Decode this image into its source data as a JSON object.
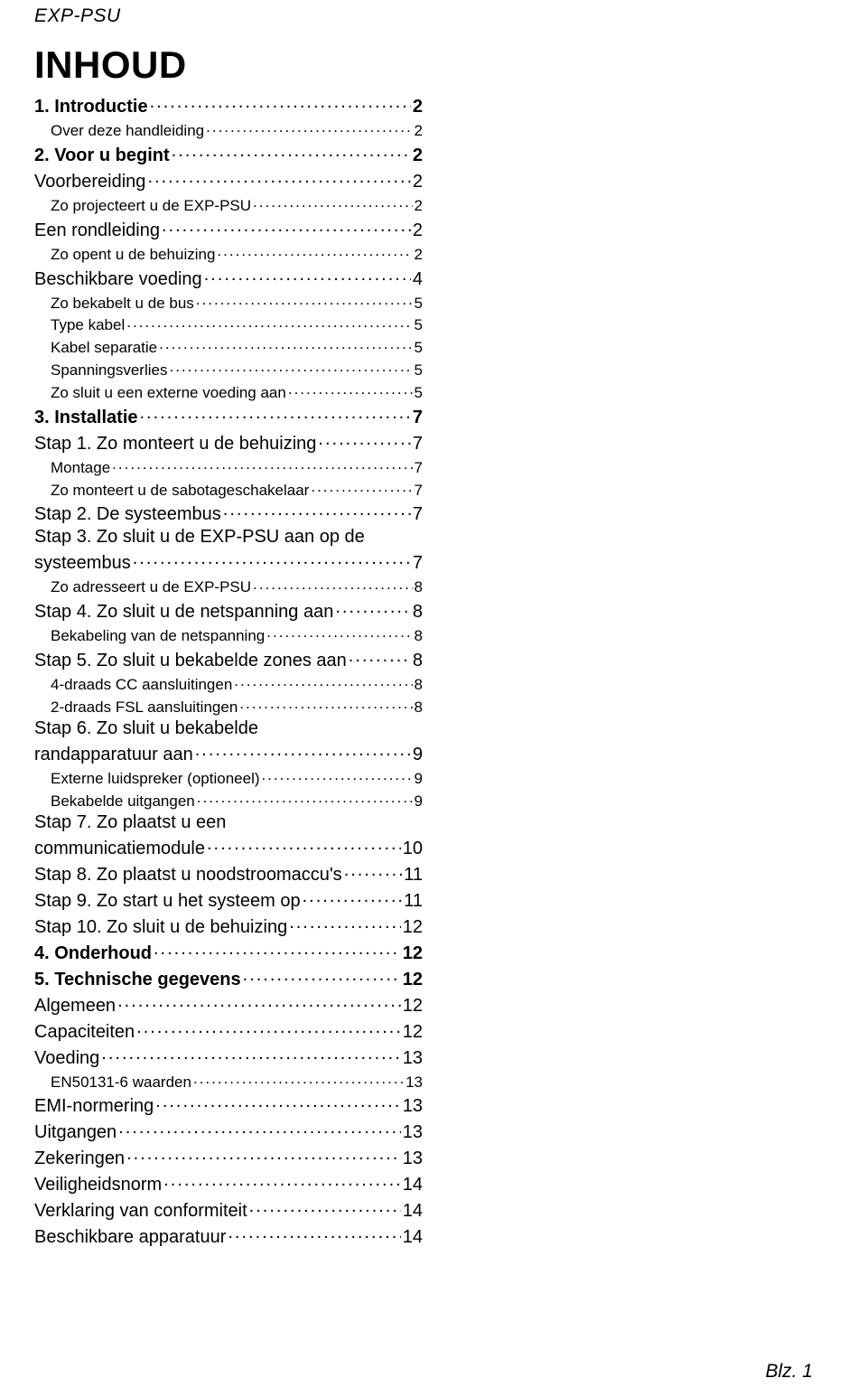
{
  "header": "EXP-PSU",
  "title": "INHOUD",
  "footer": "Blz. 1",
  "toc": [
    {
      "level": 1,
      "label": "1. Introductie",
      "page": "2"
    },
    {
      "level": 3,
      "label": "Over deze handleiding",
      "page": "2"
    },
    {
      "level": 1,
      "label": "2. Voor u begint",
      "page": "2"
    },
    {
      "level": 2,
      "label": "Voorbereiding",
      "page": "2"
    },
    {
      "level": 3,
      "label": "Zo projecteert u de EXP-PSU",
      "page": "2"
    },
    {
      "level": 2,
      "label": "Een rondleiding",
      "page": "2"
    },
    {
      "level": 3,
      "label": "Zo opent u de behuizing",
      "page": "2"
    },
    {
      "level": 2,
      "label": "Beschikbare voeding",
      "page": "4"
    },
    {
      "level": 3,
      "label": "Zo bekabelt u de bus",
      "page": "5"
    },
    {
      "level": 3,
      "label": "Type kabel",
      "page": "5"
    },
    {
      "level": 3,
      "label": "Kabel separatie",
      "page": "5"
    },
    {
      "level": 3,
      "label": "Spanningsverlies",
      "page": "5"
    },
    {
      "level": 3,
      "label": "Zo sluit u een externe voeding aan",
      "page": "5"
    },
    {
      "level": 1,
      "label": "3. Installatie",
      "page": "7"
    },
    {
      "level": 2,
      "label": "Stap 1. Zo monteert u de behuizing",
      "page": "7"
    },
    {
      "level": 3,
      "label": "Montage",
      "page": "7"
    },
    {
      "level": 3,
      "label": "Zo monteert u de sabotageschakelaar",
      "page": "7"
    },
    {
      "level": 2,
      "label": "Stap 2. De systeembus",
      "page": "7"
    },
    {
      "level": 2,
      "multi": true,
      "label1": "Stap 3. Zo sluit u de EXP-PSU aan op de",
      "label2": "systeembus",
      "page": "7"
    },
    {
      "level": 3,
      "label": "Zo adresseert u de EXP-PSU",
      "page": "8"
    },
    {
      "level": 2,
      "label": "Stap 4. Zo sluit u de netspanning aan",
      "page": "8"
    },
    {
      "level": 3,
      "label": "Bekabeling van de netspanning",
      "page": "8"
    },
    {
      "level": 2,
      "label": "Stap 5. Zo sluit u bekabelde zones aan",
      "page": "8"
    },
    {
      "level": 3,
      "label": "4-draads CC aansluitingen",
      "page": "8"
    },
    {
      "level": 3,
      "label": "2-draads FSL aansluitingen",
      "page": "8"
    },
    {
      "level": 2,
      "multi": true,
      "label1": "Stap 6. Zo sluit u bekabelde",
      "label2": "randapparatuur aan",
      "page": "9"
    },
    {
      "level": 3,
      "label": "Externe luidspreker (optioneel)",
      "page": "9"
    },
    {
      "level": 3,
      "label": "Bekabelde uitgangen",
      "page": "9"
    },
    {
      "level": 2,
      "multi": true,
      "label1": "Stap 7. Zo plaatst u een",
      "label2": "communicatiemodule",
      "page": "10"
    },
    {
      "level": 2,
      "label": "Stap 8. Zo plaatst u noodstroomaccu's",
      "page": "11"
    },
    {
      "level": 2,
      "label": "Stap 9. Zo start u het systeem op",
      "page": "11"
    },
    {
      "level": 2,
      "label": "Stap 10. Zo sluit u de behuizing",
      "page": "12"
    },
    {
      "level": 1,
      "label": "4. Onderhoud",
      "page": "12"
    },
    {
      "level": 1,
      "label": "5. Technische gegevens",
      "page": "12"
    },
    {
      "level": 2,
      "label": "Algemeen",
      "page": "12"
    },
    {
      "level": 2,
      "label": "Capaciteiten",
      "page": "12"
    },
    {
      "level": 2,
      "label": "Voeding",
      "page": "13"
    },
    {
      "level": 3,
      "label": "EN50131-6 waarden",
      "page": "13"
    },
    {
      "level": 2,
      "label": "EMI-normering",
      "page": "13"
    },
    {
      "level": 2,
      "label": "Uitgangen",
      "page": "13"
    },
    {
      "level": 2,
      "label": "Zekeringen",
      "page": "13"
    },
    {
      "level": 2,
      "label": "Veiligheidsnorm",
      "page": "14"
    },
    {
      "level": 2,
      "label": "Verklaring van conformiteit",
      "page": "14"
    },
    {
      "level": 2,
      "label": "Beschikbare apparatuur",
      "page": "14"
    }
  ]
}
